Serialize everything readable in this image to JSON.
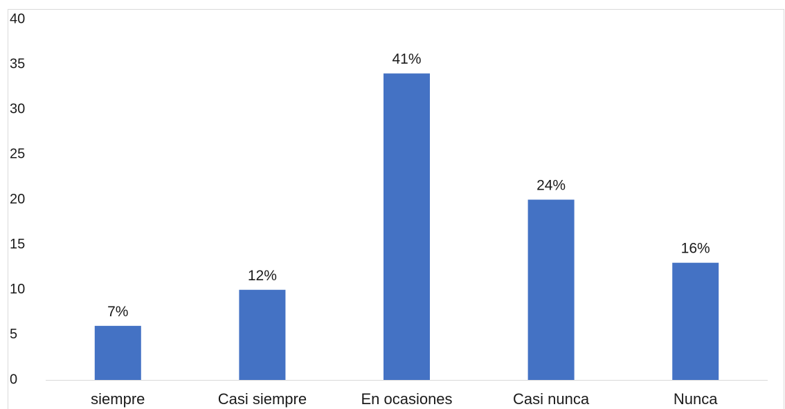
{
  "chart_data": {
    "type": "bar",
    "categories": [
      "siempre",
      "Casi siempre",
      "En ocasiones",
      "Casi nunca",
      "Nunca"
    ],
    "values": [
      6,
      10,
      34,
      20,
      13
    ],
    "data_labels": [
      "7%",
      "12%",
      "41%",
      "24%",
      "16%"
    ],
    "ylim": [
      0,
      40
    ],
    "yticks": [
      0,
      5,
      10,
      15,
      20,
      25,
      30,
      35,
      40
    ],
    "ytick_labels": [
      "0",
      "5",
      "10",
      "15",
      "20",
      "25",
      "30",
      "35",
      "40"
    ],
    "bar_color": "#4472C4",
    "grid": false,
    "legend": "none"
  }
}
